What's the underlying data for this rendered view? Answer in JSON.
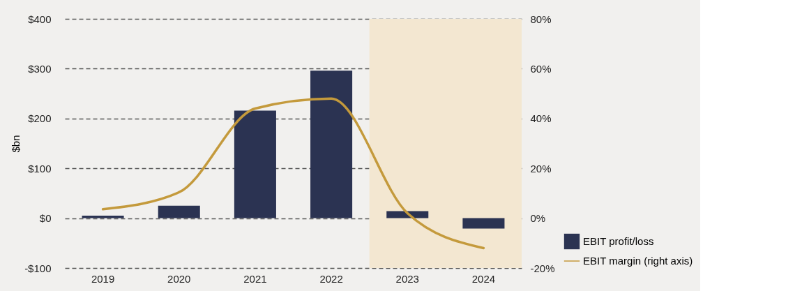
{
  "chart_data": {
    "type": "bar",
    "ylabel": "$bn",
    "categories": [
      "2019",
      "2020",
      "2021",
      "2022",
      "2023",
      "2024"
    ],
    "series": [
      {
        "name": "EBIT profit/loss",
        "color": "#2b3352",
        "values": [
          5,
          25,
          216,
          296,
          14,
          -21
        ]
      },
      {
        "name": "EBIT margin (right axis)",
        "type": "line",
        "axis": "y2",
        "color": "#c49a3c",
        "values": [
          3.6,
          10.4,
          44,
          48,
          2,
          -12
        ]
      }
    ],
    "ylim": [
      -100,
      400
    ],
    "yticks": [
      {
        "value": -100,
        "label": "-$100"
      },
      {
        "value": 0,
        "label": "$0"
      },
      {
        "value": 100,
        "label": "$100"
      },
      {
        "value": 200,
        "label": "$200"
      },
      {
        "value": 300,
        "label": "$300"
      },
      {
        "value": 400,
        "label": "$400"
      }
    ],
    "y2lim": [
      -20,
      80
    ],
    "y2ticks": [
      {
        "value": -20,
        "label": "-20%"
      },
      {
        "value": 0,
        "label": "0%"
      },
      {
        "value": 20,
        "label": "20%"
      },
      {
        "value": 40,
        "label": "40%"
      },
      {
        "value": 60,
        "label": "60%"
      },
      {
        "value": 80,
        "label": "80%"
      }
    ],
    "bands": [
      {
        "axis": "x",
        "from": "2023",
        "to": "2024",
        "color": "#f3e7d1"
      }
    ],
    "grid": "y",
    "legend": "bottom right",
    "marker": "none",
    "line_style": "solid"
  }
}
